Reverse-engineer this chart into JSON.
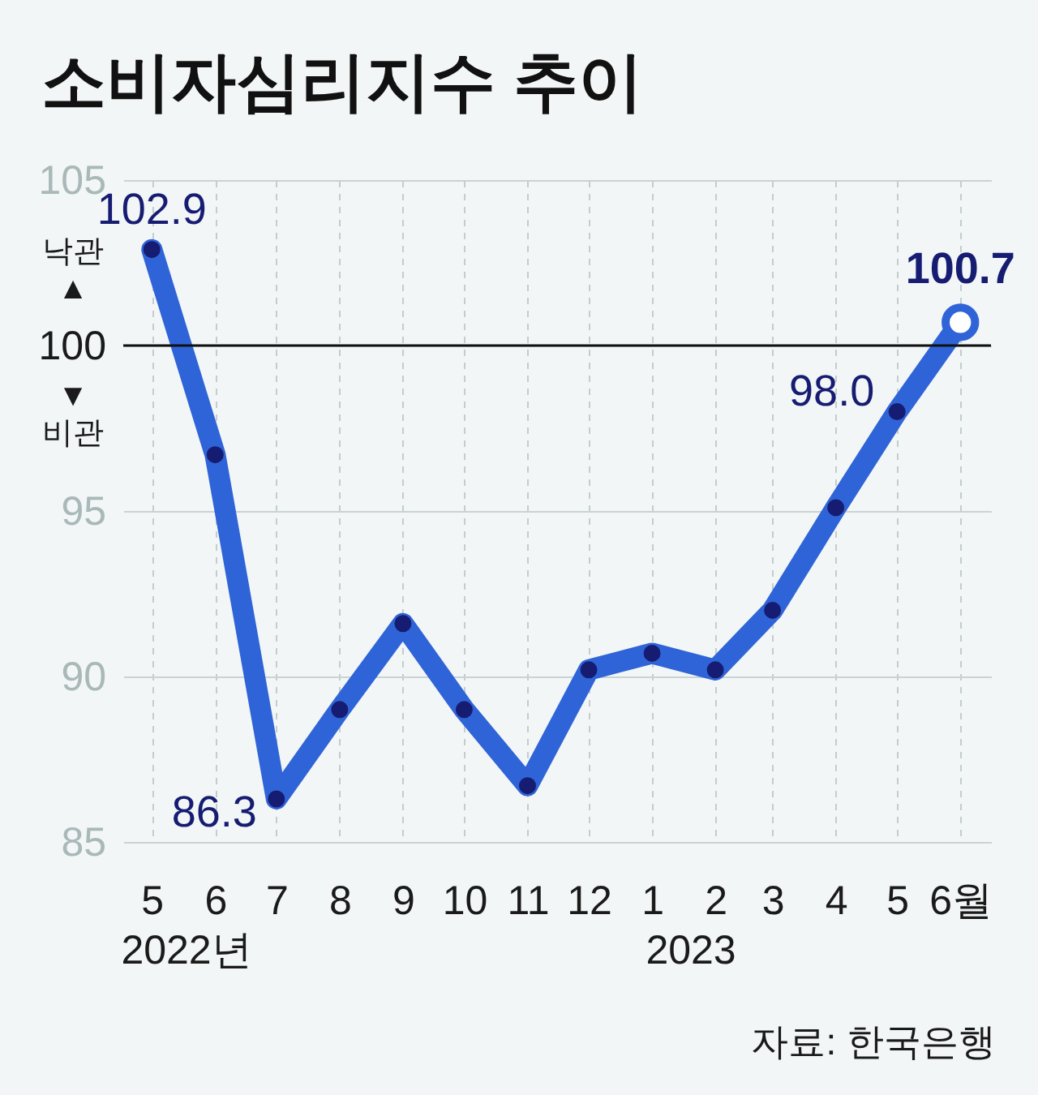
{
  "chart_data": {
    "type": "line",
    "title": "소비자심리지수 추이",
    "x": [
      "2022-05",
      "2022-06",
      "2022-07",
      "2022-08",
      "2022-09",
      "2022-10",
      "2022-11",
      "2022-12",
      "2023-01",
      "2023-02",
      "2023-03",
      "2023-04",
      "2023-05",
      "2023-06"
    ],
    "xlim": [
      "2022-04-17",
      "2023-06-16"
    ],
    "xticks": [
      {
        "value": "2022-05",
        "label": "5"
      },
      {
        "value": "2022-06",
        "label": "6"
      },
      {
        "value": "2022-07",
        "label": "7"
      },
      {
        "value": "2022-08",
        "label": "8"
      },
      {
        "value": "2022-09",
        "label": "9"
      },
      {
        "value": "2022-10",
        "label": "10"
      },
      {
        "value": "2022-11",
        "label": "11"
      },
      {
        "value": "2022-12",
        "label": "12"
      },
      {
        "value": "2023-01",
        "label": "1"
      },
      {
        "value": "2023-02",
        "label": "2"
      },
      {
        "value": "2023-03",
        "label": "3"
      },
      {
        "value": "2023-04",
        "label": "4"
      },
      {
        "value": "2023-05",
        "label": "5"
      },
      {
        "value": "2023-06",
        "label": "6월"
      }
    ],
    "ylim": [
      85,
      105
    ],
    "yticks": [
      85,
      90,
      95,
      100,
      105
    ],
    "series": [
      {
        "color": "#2f64d8",
        "values": [
          102.9,
          96.7,
          86.3,
          89.0,
          91.6,
          89.0,
          86.7,
          90.2,
          90.7,
          90.2,
          92.0,
          95.1,
          98.0,
          100.7
        ],
        "value_labels": [
          "102.9",
          null,
          "86.3",
          null,
          null,
          null,
          null,
          null,
          null,
          null,
          null,
          null,
          "98.0",
          "100.7"
        ]
      }
    ],
    "ref_lines": [
      {
        "axis": "y",
        "value": 100,
        "color": "#111111"
      }
    ],
    "annotations": [
      "낙관\n▲",
      "▼\n비관",
      "2022년",
      "2023",
      "자료: 한국은행"
    ],
    "grid": true,
    "marker": "circle",
    "line_style": "solid"
  }
}
